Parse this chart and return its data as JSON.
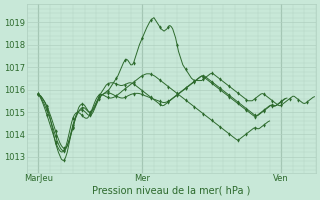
{
  "title": "Pression niveau de la mer( hPa )",
  "bg_color": "#c8e8d8",
  "plot_bg_color": "#c8e8d8",
  "line_color": "#2d6a2d",
  "marker_color": "#2d6a2d",
  "grid_color": "#b0d0c0",
  "yticks": [
    1013,
    1014,
    1015,
    1016,
    1017,
    1018,
    1019
  ],
  "ylim": [
    1012.3,
    1019.8
  ],
  "xtick_labels": [
    "MarJeu",
    "Mer",
    "Ven"
  ],
  "xtick_positions": [
    0,
    72,
    168
  ],
  "xlim": [
    -8,
    192
  ],
  "n_points": 192,
  "lines": [
    {
      "data": [
        1015.8,
        1015.75,
        1015.7,
        1015.6,
        1015.5,
        1015.4,
        1015.2,
        1015.0,
        1014.8,
        1014.5,
        1014.2,
        1013.9,
        1013.6,
        1013.4,
        1013.2,
        1013.05,
        1012.9,
        1012.85,
        1012.85,
        1013.0,
        1013.2,
        1013.5,
        1013.8,
        1014.1,
        1014.3,
        1014.55,
        1014.8,
        1015.0,
        1015.2,
        1015.3,
        1015.35,
        1015.35,
        1015.3,
        1015.2,
        1015.1,
        1015.0,
        1014.95,
        1015.0,
        1015.1,
        1015.2,
        1015.35,
        1015.5,
        1015.65,
        1015.7,
        1015.75,
        1015.8,
        1015.85,
        1015.9,
        1015.95,
        1016.0,
        1016.1,
        1016.2,
        1016.3,
        1016.4,
        1016.5,
        1016.6,
        1016.75,
        1016.9,
        1017.05,
        1017.2,
        1017.3,
        1017.35,
        1017.3,
        1017.2,
        1017.1,
        1017.1,
        1017.2,
        1017.4,
        1017.6,
        1017.8,
        1018.0,
        1018.15,
        1018.3,
        1018.45,
        1018.6,
        1018.75,
        1018.88,
        1019.0,
        1019.1,
        1019.15,
        1019.2,
        1019.1,
        1019.0,
        1018.9,
        1018.8,
        1018.7,
        1018.65,
        1018.6,
        1018.65,
        1018.7,
        1018.8,
        1018.85,
        1018.8,
        1018.7,
        1018.5,
        1018.3,
        1018.0,
        1017.7,
        1017.5,
        1017.3,
        1017.1,
        1017.0,
        1016.9,
        1016.8,
        1016.7,
        1016.6,
        1016.5,
        1016.45,
        1016.4,
        1016.4,
        1016.4,
        1016.4,
        1016.4,
        1016.4,
        1016.45,
        1016.5,
        1016.55,
        1016.6,
        1016.65,
        1016.7,
        1016.72,
        1016.7,
        1016.65,
        1016.6,
        1016.55,
        1016.5,
        1016.45,
        1016.4,
        1016.35,
        1016.3,
        1016.25,
        1016.2,
        1016.15,
        1016.1,
        1016.05,
        1016.0,
        1015.95,
        1015.9,
        1015.85,
        1015.8,
        1015.75,
        1015.7,
        1015.65,
        1015.6,
        1015.55,
        1015.5,
        1015.5,
        1015.5,
        1015.5,
        1015.55,
        1015.6,
        1015.65,
        1015.7,
        1015.75,
        1015.8,
        1015.82,
        1015.8,
        1015.75,
        1015.7,
        1015.65,
        1015.6,
        1015.55,
        1015.5,
        1015.45,
        1015.4,
        1015.35,
        1015.3,
        1015.28,
        1015.3,
        1015.35,
        1015.4,
        1015.45,
        1015.5,
        1015.55,
        1015.6,
        1015.65,
        1015.7,
        1015.7,
        1015.65,
        1015.6,
        1015.55,
        1015.5,
        1015.45,
        1015.4,
        1015.38,
        1015.4,
        1015.45,
        1015.5,
        1015.55,
        1015.6,
        1015.65,
        1015.68
      ]
    },
    {
      "data": [
        1015.8,
        1015.75,
        1015.68,
        1015.6,
        1015.5,
        1015.38,
        1015.25,
        1015.1,
        1014.93,
        1014.75,
        1014.55,
        1014.35,
        1014.15,
        1013.95,
        1013.78,
        1013.62,
        1013.5,
        1013.42,
        1013.38,
        1013.4,
        1013.5,
        1013.65,
        1013.85,
        1014.08,
        1014.32,
        1014.55,
        1014.75,
        1014.9,
        1015.03,
        1015.12,
        1015.18,
        1015.2,
        1015.18,
        1015.12,
        1015.05,
        1015.0,
        1015.0,
        1015.05,
        1015.15,
        1015.28,
        1015.42,
        1015.55,
        1015.68,
        1015.8,
        1015.9,
        1016.0,
        1016.1,
        1016.2,
        1016.25,
        1016.28,
        1016.3,
        1016.3,
        1016.3,
        1016.28,
        1016.25,
        1016.22,
        1016.2,
        1016.18,
        1016.18,
        1016.2,
        1016.22,
        1016.25,
        1016.28,
        1016.3,
        1016.3,
        1016.28,
        1016.25,
        1016.2,
        1016.15,
        1016.1,
        1016.05,
        1016.0,
        1015.95,
        1015.9,
        1015.85,
        1015.8,
        1015.75,
        1015.7,
        1015.65,
        1015.6,
        1015.55,
        1015.5,
        1015.45,
        1015.4,
        1015.35,
        1015.3,
        1015.28,
        1015.3,
        1015.35,
        1015.4,
        1015.45,
        1015.5,
        1015.55,
        1015.6,
        1015.65,
        1015.7,
        1015.75,
        1015.8,
        1015.85,
        1015.9,
        1015.95,
        1016.0,
        1016.05,
        1016.1,
        1016.15,
        1016.2,
        1016.25,
        1016.3,
        1016.35,
        1016.4,
        1016.45,
        1016.5,
        1016.55,
        1016.6,
        1016.62,
        1016.6,
        1016.55,
        1016.5,
        1016.45,
        1016.4,
        1016.35,
        1016.3,
        1016.25,
        1016.2,
        1016.15,
        1016.1,
        1016.05,
        1016.0,
        1015.95,
        1015.9,
        1015.85,
        1015.8,
        1015.75,
        1015.7,
        1015.65,
        1015.6,
        1015.55,
        1015.5,
        1015.45,
        1015.4,
        1015.35,
        1015.3,
        1015.25,
        1015.2,
        1015.15,
        1015.1,
        1015.05,
        1015.0,
        1014.95,
        1014.9,
        1014.85,
        1014.82,
        1014.85,
        1014.9,
        1014.95,
        1015.0,
        1015.05,
        1015.1,
        1015.15,
        1015.2,
        1015.25,
        1015.3,
        1015.32,
        1015.3,
        1015.28,
        1015.3,
        1015.35,
        1015.4,
        1015.45,
        1015.5,
        1015.55,
        1015.6,
        1015.62
      ]
    },
    {
      "data": [
        1015.8,
        1015.72,
        1015.62,
        1015.5,
        1015.37,
        1015.22,
        1015.07,
        1014.9,
        1014.72,
        1014.53,
        1014.33,
        1014.13,
        1013.93,
        1013.73,
        1013.57,
        1013.43,
        1013.33,
        1013.28,
        1013.28,
        1013.35,
        1013.48,
        1013.68,
        1013.92,
        1014.18,
        1014.43,
        1014.65,
        1014.82,
        1014.95,
        1015.03,
        1015.08,
        1015.1,
        1015.08,
        1015.03,
        1014.97,
        1014.9,
        1014.85,
        1014.85,
        1014.9,
        1015.0,
        1015.15,
        1015.3,
        1015.45,
        1015.58,
        1015.68,
        1015.75,
        1015.8,
        1015.83,
        1015.85,
        1015.85,
        1015.85,
        1015.83,
        1015.8,
        1015.77,
        1015.73,
        1015.7,
        1015.68,
        1015.65,
        1015.63,
        1015.62,
        1015.63,
        1015.65,
        1015.68,
        1015.72,
        1015.75,
        1015.78,
        1015.8,
        1015.82,
        1015.83,
        1015.83,
        1015.83,
        1015.82,
        1015.8,
        1015.78,
        1015.75,
        1015.72,
        1015.7,
        1015.67,
        1015.65,
        1015.62,
        1015.6,
        1015.57,
        1015.55,
        1015.52,
        1015.5,
        1015.47,
        1015.45,
        1015.43,
        1015.42,
        1015.43,
        1015.45,
        1015.48,
        1015.52,
        1015.57,
        1015.62,
        1015.67,
        1015.72,
        1015.77,
        1015.82,
        1015.87,
        1015.92,
        1015.97,
        1016.02,
        1016.07,
        1016.12,
        1016.17,
        1016.22,
        1016.27,
        1016.32,
        1016.37,
        1016.42,
        1016.47,
        1016.52,
        1016.57,
        1016.6,
        1016.58,
        1016.53,
        1016.48,
        1016.43,
        1016.38,
        1016.33,
        1016.28,
        1016.23,
        1016.18,
        1016.13,
        1016.08,
        1016.03,
        1015.98,
        1015.93,
        1015.88,
        1015.83,
        1015.78,
        1015.73,
        1015.68,
        1015.63,
        1015.58,
        1015.53,
        1015.48,
        1015.43,
        1015.38,
        1015.33,
        1015.28,
        1015.23,
        1015.18,
        1015.13,
        1015.08,
        1015.03,
        1014.98,
        1014.93,
        1014.88,
        1014.83,
        1014.8,
        1014.83,
        1014.88,
        1014.93,
        1014.98,
        1015.03,
        1015.08,
        1015.13,
        1015.18,
        1015.23,
        1015.28,
        1015.3,
        1015.28,
        1015.25,
        1015.27,
        1015.32,
        1015.37,
        1015.42,
        1015.47,
        1015.52,
        1015.57,
        1015.6
      ]
    },
    {
      "data": [
        1015.8,
        1015.7,
        1015.57,
        1015.42,
        1015.25,
        1015.07,
        1014.87,
        1014.67,
        1014.47,
        1014.27,
        1014.07,
        1013.87,
        1013.67,
        1013.5,
        1013.37,
        1013.27,
        1013.22,
        1013.23,
        1013.3,
        1013.45,
        1013.67,
        1013.95,
        1014.25,
        1014.52,
        1014.73,
        1014.87,
        1014.95,
        1014.98,
        1014.97,
        1014.93,
        1014.87,
        1014.8,
        1014.75,
        1014.72,
        1014.73,
        1014.8,
        1014.92,
        1015.08,
        1015.25,
        1015.42,
        1015.57,
        1015.68,
        1015.75,
        1015.78,
        1015.78,
        1015.75,
        1015.72,
        1015.68,
        1015.65,
        1015.63,
        1015.62,
        1015.63,
        1015.65,
        1015.68,
        1015.72,
        1015.77,
        1015.82,
        1015.87,
        1015.93,
        1015.98,
        1016.03,
        1016.08,
        1016.13,
        1016.18,
        1016.23,
        1016.28,
        1016.33,
        1016.38,
        1016.43,
        1016.48,
        1016.53,
        1016.58,
        1016.62,
        1016.65,
        1016.68,
        1016.7,
        1016.7,
        1016.7,
        1016.68,
        1016.65,
        1016.62,
        1016.58,
        1016.53,
        1016.48,
        1016.43,
        1016.38,
        1016.33,
        1016.28,
        1016.23,
        1016.18,
        1016.13,
        1016.08,
        1016.03,
        1015.98,
        1015.93,
        1015.88,
        1015.83,
        1015.78,
        1015.73,
        1015.68,
        1015.63,
        1015.58,
        1015.53,
        1015.48,
        1015.43,
        1015.38,
        1015.33,
        1015.28,
        1015.23,
        1015.18,
        1015.13,
        1015.08,
        1015.03,
        1014.98,
        1014.93,
        1014.88,
        1014.83,
        1014.78,
        1014.73,
        1014.68,
        1014.63,
        1014.58,
        1014.53,
        1014.48,
        1014.43,
        1014.38,
        1014.33,
        1014.28,
        1014.23,
        1014.18,
        1014.13,
        1014.08,
        1014.03,
        1013.98,
        1013.93,
        1013.88,
        1013.83,
        1013.78,
        1013.75,
        1013.78,
        1013.83,
        1013.88,
        1013.93,
        1013.98,
        1014.03,
        1014.08,
        1014.13,
        1014.18,
        1014.23,
        1014.28,
        1014.3,
        1014.28,
        1014.25,
        1014.27,
        1014.32,
        1014.37,
        1014.42,
        1014.47,
        1014.52,
        1014.57,
        1014.6
      ]
    }
  ]
}
